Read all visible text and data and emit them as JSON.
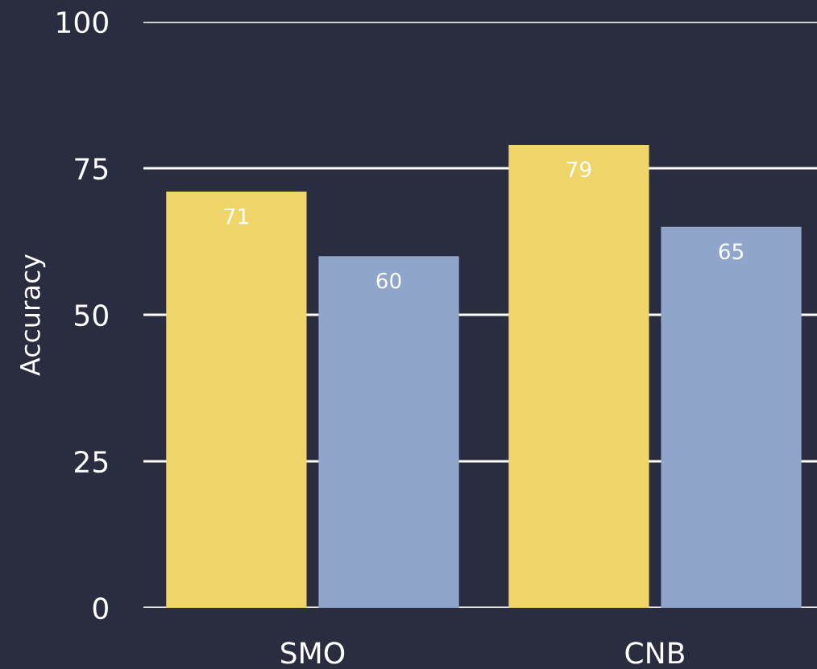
{
  "chart_data": {
    "type": "bar",
    "ylabel": "Accuracy",
    "categories": [
      "SMO",
      "CNB"
    ],
    "series": [
      {
        "color": "#f0d56a",
        "values": [
          71,
          79
        ]
      },
      {
        "color": "#8fa5c9",
        "values": [
          60,
          65
        ]
      }
    ],
    "ylim": [
      0,
      100
    ],
    "yticks": [
      0,
      25,
      50,
      75,
      100
    ],
    "grid": "y",
    "data_labels": true,
    "legend": false
  }
}
